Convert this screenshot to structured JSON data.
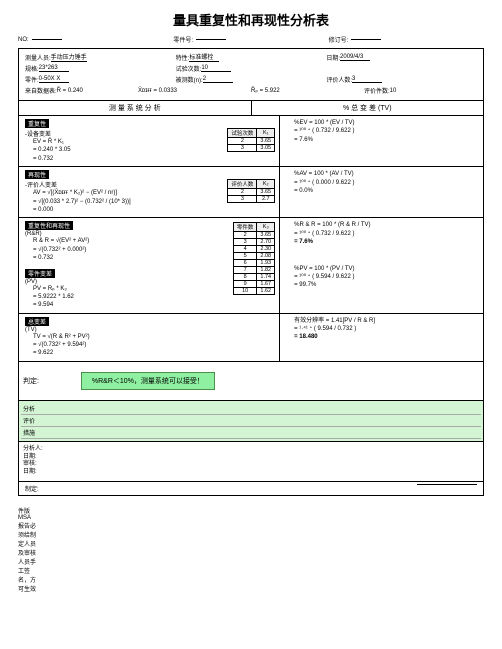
{
  "title": "量具重复性和再现性分析表",
  "header": {
    "row1": {
      "no_lbl": "NO:",
      "no": "",
      "partno_lbl": "零件号:",
      "partno": "",
      "rev_lbl": "修订号:",
      "rev": ""
    },
    "row2": {
      "a_lbl": "测量人员:",
      "a": "手动压力锤手",
      "b_lbl": "特性:",
      "b": "标准螺栓",
      "c_lbl": "日期:",
      "c": "2009/4/3"
    },
    "row3": {
      "a_lbl": "规格:",
      "a": "23*263",
      "b_lbl": "试验次数:",
      "b": "10",
      "c_lbl": "",
      "c": ""
    },
    "row4": {
      "a_lbl": "零件:",
      "a": "0-50X X",
      "b_lbl": "被测数(n):",
      "b": "2",
      "c_lbl": "评价人数:",
      "c": "3"
    },
    "row5": {
      "a_lbl": "来自数据表:",
      "a": "R̄ =   0.240",
      "b": "X̄ᴅɪғғ =  0.0333",
      "c": "R̄ₚ =   5.922",
      "d_lbl": "评价件数:",
      "d": "10"
    }
  },
  "split": {
    "left": "测 量 系 统 分 析",
    "right": "% 总 变 差 (TV)"
  },
  "ev": {
    "title": "重复性",
    "sub": "-设备变差",
    "l1": "EV = R̄ * K₁",
    "l2": "= 0.240 * 3.05",
    "l3": "= 0.732",
    "tbl_h1": "试验次数",
    "tbl_h2": "K₁",
    "r1a": "2",
    "r1b": "3.65",
    "r2a": "3",
    "r2b": "3.05",
    "rt": "%EV = 100 * (EV / TV)",
    "r1": "= ¹⁰⁰﹡( 0.732 / 9.622 )",
    "r2": "= 7.6%"
  },
  "av": {
    "title": "再现性",
    "sub": "-评价人变差",
    "l1": "AV = √[(X̄ᴅɪғғ * K₂)² − (EV² / nr)]",
    "l2": "= √[(0.033 * 2.7)² − (0.732² / (10* 3))]",
    "l3": "= 0.000",
    "tbl_h1": "评价人数",
    "tbl_h2": "K₂",
    "r1a": "2",
    "r1b": "3.65",
    "r2a": "3",
    "r2b": "2.7",
    "rt": "%AV = 100 * (AV / TV)",
    "r1": "= ¹⁰⁰﹡( 0.000 / 9.622 )",
    "r2": "= 0.0%"
  },
  "rr": {
    "title": "重复性和再现性",
    "sub": "(R&R)",
    "l1": "R & R = √(EV² + AV²)",
    "l2": "= √(0.732² + 0.000²)",
    "l3": "= 0.732",
    "rt": "%R & R = 100 * (R & R / TV)",
    "r1": "= ¹⁰⁰﹡( 0.732 / 9.622 )",
    "r2": "= 7.6%"
  },
  "pv": {
    "title": "零件变差",
    "sub": "(PV)",
    "l1": "PV = Rₚ * K₃",
    "l2": "= 5.9222 * 1.62",
    "l3": "= 9.594",
    "rt": "%PV = 100 * (PV / TV)",
    "r1": "= ¹⁰⁰﹡( 9.594 / 9.622 )",
    "r2": "= 99.7%"
  },
  "k3": {
    "hdr1": "零件数",
    "hdr2": "K₃",
    "rows": [
      [
        "2",
        "3.65"
      ],
      [
        "3",
        "2.70"
      ],
      [
        "4",
        "2.30"
      ],
      [
        "5",
        "2.08"
      ],
      [
        "6",
        "1.93"
      ],
      [
        "7",
        "1.82"
      ],
      [
        "8",
        "1.74"
      ],
      [
        "9",
        "1.67"
      ],
      [
        "10",
        "1.62"
      ]
    ]
  },
  "tv": {
    "title": "总变差",
    "sub": "(TV)",
    "l1": "TV = √(R & R² + PV²)",
    "l2": "= √(0.732² + 9.594²)",
    "l3": "= 9.622",
    "rt": "有效分辨率 = 1.41[PV / R & R]",
    "r1": "= ¹·⁴¹﹡( 9.594 / 0.732 )",
    "r2": "= 18.480"
  },
  "judge": {
    "lbl": "判定:",
    "txt": "%R&R＜10%，测量系统可以接受！"
  },
  "footer_labels": [
    "分析",
    "评价",
    "措施"
  ],
  "sig": {
    "l1": "分析人:",
    "l2": "日期:",
    "l3": "审核:",
    "l4": "日期:"
  },
  "bottom": {
    "lbl": "制定:",
    "seal": "件版\nMSA\n报告必\n须给制\n定人员\n及审核\n人员手\n工签\n名，方\n可生效"
  },
  "colors": {
    "judge_bg": "#8ef0a0",
    "judge_border": "#4a904a",
    "footer_bg": "#d4f5d4"
  }
}
